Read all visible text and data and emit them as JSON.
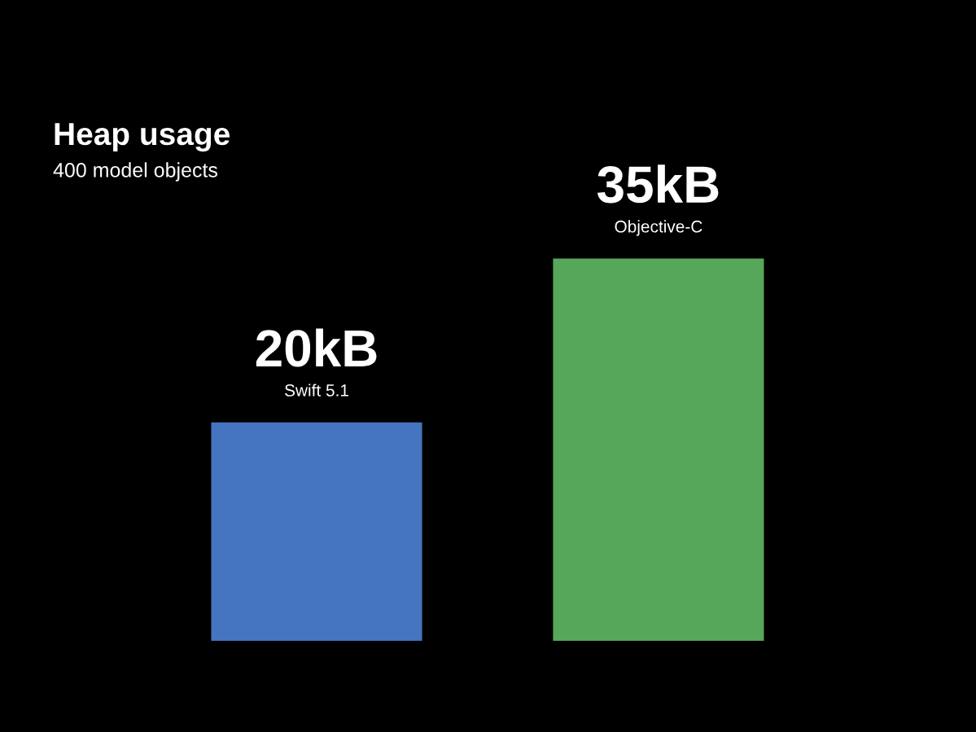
{
  "chart_data": {
    "type": "bar",
    "title": "Heap usage",
    "subtitle": "400 model objects",
    "categories": [
      "Swift 5.1",
      "Objective-C"
    ],
    "values": [
      20,
      35
    ],
    "colors": [
      "#4575c0",
      "#56a75a"
    ],
    "value_labels": [
      "20kB",
      "35kB"
    ]
  }
}
